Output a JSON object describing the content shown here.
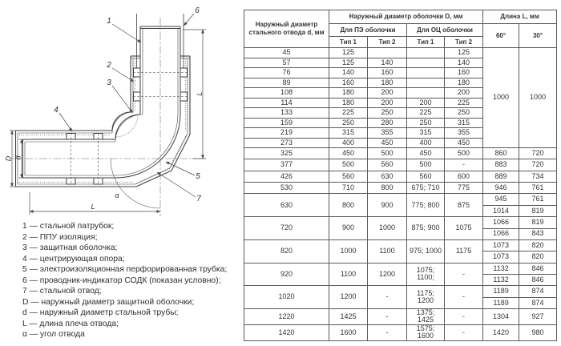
{
  "colors": {
    "line": "#3f3f3f",
    "dim": "#4a4a4a",
    "text": "#2f2f2f",
    "table_border": "#5a5a5a"
  },
  "diagram": {
    "callouts": [
      "1",
      "2",
      "3",
      "4",
      "5",
      "6",
      "7"
    ],
    "labels": {
      "outer_dia": "D",
      "inner_dia": "d",
      "length": "L",
      "angle": "α"
    }
  },
  "legend": {
    "items": [
      "1 — стальной патрубок;",
      "2 — ППУ изоляция;",
      "3 — защитная оболочка;",
      "4 — центрирующая опора;",
      "5 — электроизоляционная перфорированная трубка;",
      "6 — проводник-индикатор СОДК (показан условно);",
      "7 — стальной отвод;",
      "D — наружный диаметр защитной оболочки;",
      "d — наружный диаметр стальной трубы;",
      "L — длина плеча отвода;",
      "α — угол отвода"
    ]
  },
  "table": {
    "header": {
      "col_d": "Наружный диаметр стального отвода d, мм",
      "group_D": "Наружный диаметр оболочки D, мм",
      "group_pe": "Для ПЭ оболочки",
      "group_oc": "Для ОЦ оболочки",
      "tip1": "Тип 1",
      "tip2": "Тип 2",
      "group_L": "Длина L, мм",
      "deg60": "60°",
      "deg30": "30°"
    },
    "rows": [
      [
        "45",
        "125",
        "",
        "",
        "125",
        {
          "v": "1000",
          "rs": 10
        },
        {
          "v": "1000",
          "rs": 10
        }
      ],
      [
        "57",
        "125",
        "140",
        "",
        "140"
      ],
      [
        "76",
        "140",
        "160",
        "",
        "160"
      ],
      [
        "89",
        "160",
        "180",
        "",
        "180"
      ],
      [
        "108",
        "180",
        "200",
        "",
        "200"
      ],
      [
        "114",
        "180",
        "200",
        "200",
        "225"
      ],
      [
        "133",
        "225",
        "250",
        "225",
        "250"
      ],
      [
        "159",
        "250",
        "280",
        "250",
        "315"
      ],
      [
        "219",
        "315",
        "355",
        "315",
        "355"
      ],
      [
        "273",
        "400",
        "450",
        "400",
        "450"
      ],
      [
        "325",
        "450",
        "500",
        "450",
        "500",
        "860",
        "720"
      ],
      [
        "377",
        "500",
        "560",
        "500",
        "-",
        "883",
        "720"
      ],
      [
        "426",
        "560",
        "630",
        "560",
        "600",
        "889",
        "734"
      ],
      [
        "530",
        "710",
        "800",
        "675; 710",
        "775",
        "946",
        "761"
      ],
      [
        {
          "v": "630",
          "rs": 2
        },
        {
          "v": "800",
          "rs": 2
        },
        {
          "v": "900",
          "rs": 2
        },
        {
          "v": "775; 800",
          "rs": 2
        },
        {
          "v": "875",
          "rs": 2
        },
        "945",
        "761"
      ],
      [
        "1014",
        "819"
      ],
      [
        {
          "v": "720",
          "rs": 2
        },
        {
          "v": "900",
          "rs": 2
        },
        {
          "v": "1000",
          "rs": 2
        },
        {
          "v": "875; 900",
          "rs": 2
        },
        {
          "v": "1075",
          "rs": 2
        },
        "1066",
        "819"
      ],
      [
        "1066",
        "843"
      ],
      [
        {
          "v": "820",
          "rs": 2
        },
        {
          "v": "1000",
          "rs": 2
        },
        {
          "v": "1100",
          "rs": 2
        },
        {
          "v": "975; 1000",
          "rs": 2
        },
        {
          "v": "1175",
          "rs": 2
        },
        "1073",
        "820"
      ],
      [
        "1073",
        "820"
      ],
      [
        {
          "v": "920",
          "rs": 2
        },
        {
          "v": "1100",
          "rs": 2
        },
        {
          "v": "1200",
          "rs": 2
        },
        {
          "v": "1075; 1100;",
          "rs": 2
        },
        {
          "v": "-",
          "rs": 2
        },
        "1132",
        "846"
      ],
      [
        "1132",
        "846"
      ],
      [
        {
          "v": "1020",
          "rs": 2
        },
        {
          "v": "1200",
          "rs": 2
        },
        {
          "v": "-",
          "rs": 2
        },
        {
          "v": "1175; 1200",
          "rs": 2
        },
        {
          "v": "-",
          "rs": 2
        },
        "1189",
        "874"
      ],
      [
        "1189",
        "874"
      ],
      [
        "1220",
        "1425",
        "-",
        "1375; 1425",
        "-",
        "1304",
        "927"
      ],
      [
        "1420",
        "1600",
        "-",
        "1575; 1600",
        "-",
        "1420",
        "980"
      ]
    ]
  }
}
